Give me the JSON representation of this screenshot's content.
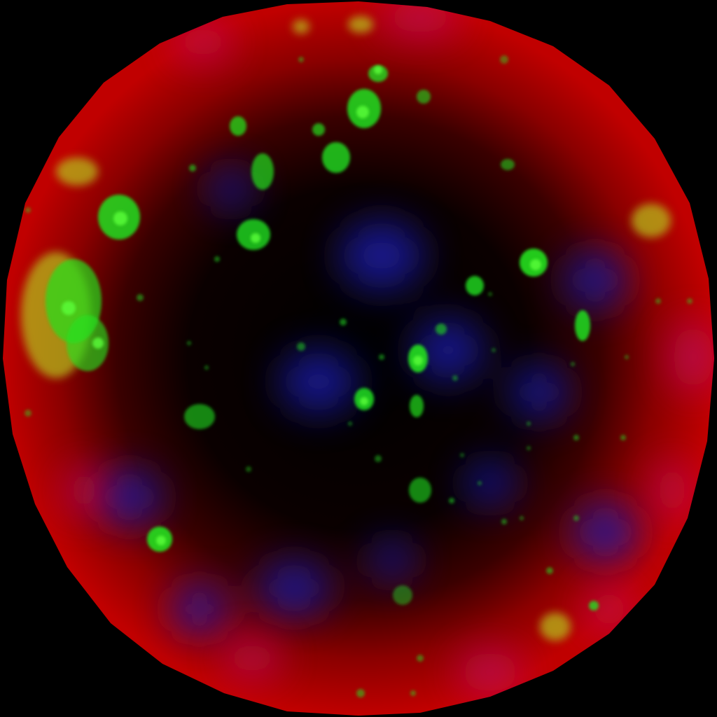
{
  "image": {
    "kind": "fluorescence-microscopy-field",
    "background_color": "#000000",
    "channels": [
      {
        "name": "red",
        "color": "#c80000",
        "role": "rim-signal"
      },
      {
        "name": "blue",
        "color": "#1e1aa8",
        "role": "nuclei"
      },
      {
        "name": "green",
        "color": "#22e01e",
        "role": "puncta"
      },
      {
        "name": "magenta-overlap",
        "color": "#c0106a",
        "role": "red-blue-overlap"
      },
      {
        "name": "yellow-overlap",
        "color": "#b8c81a",
        "role": "red-green-overlap"
      }
    ]
  }
}
